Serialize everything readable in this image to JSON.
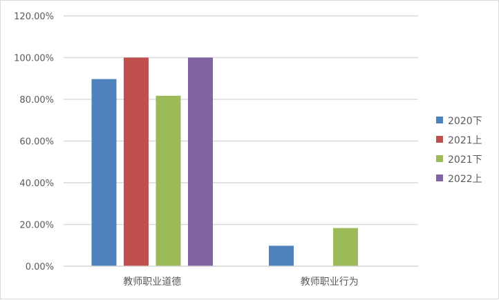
{
  "chart_data": {
    "type": "bar",
    "categories": [
      "教师职业道德",
      "教师职业行为"
    ],
    "series": [
      {
        "name": "2020下",
        "color": "#4F81BD",
        "values": [
          89.7,
          9.8
        ]
      },
      {
        "name": "2021上",
        "color": "#C0504D",
        "values": [
          100,
          0
        ]
      },
      {
        "name": "2021下",
        "color": "#9BBB59",
        "values": [
          81.7,
          18.3
        ]
      },
      {
        "name": "2022上",
        "color": "#8064A2",
        "values": [
          100,
          0
        ]
      }
    ],
    "ylim": [
      0,
      120
    ],
    "yticks": [
      "0.00%",
      "20.00%",
      "40.00%",
      "60.00%",
      "80.00%",
      "100.00%",
      "120.00%"
    ],
    "grid": true,
    "legend": "right"
  }
}
